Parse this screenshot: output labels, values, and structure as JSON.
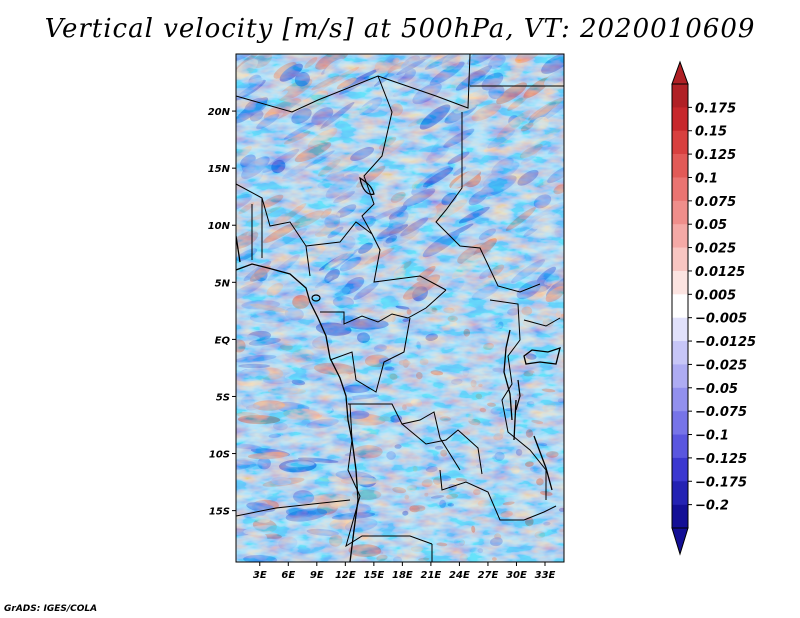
{
  "title": "Vertical velocity [m/s] at 500hPa, VT: 2020010609",
  "credit": "GrADS: IGES/COLA",
  "chart_data": {
    "type": "heatmap",
    "title": "Vertical velocity [m/s] at 500hPa, VT: 2020010609",
    "variable": "Vertical velocity",
    "units": "m/s",
    "level": "500hPa",
    "valid_time": "2020010609",
    "x_ticks": [
      {
        "lon": 3,
        "label": "3E"
      },
      {
        "lon": 6,
        "label": "6E"
      },
      {
        "lon": 9,
        "label": "9E"
      },
      {
        "lon": 12,
        "label": "12E"
      },
      {
        "lon": 15,
        "label": "15E"
      },
      {
        "lon": 18,
        "label": "18E"
      },
      {
        "lon": 21,
        "label": "21E"
      },
      {
        "lon": 24,
        "label": "24E"
      },
      {
        "lon": 27,
        "label": "27E"
      },
      {
        "lon": 30,
        "label": "30E"
      },
      {
        "lon": 33,
        "label": "33E"
      }
    ],
    "y_ticks": [
      {
        "lat": 20,
        "label": "20N"
      },
      {
        "lat": 15,
        "label": "15N"
      },
      {
        "lat": 10,
        "label": "10N"
      },
      {
        "lat": 5,
        "label": "5N"
      },
      {
        "lat": 0,
        "label": "EQ"
      },
      {
        "lat": -5,
        "label": "5S"
      },
      {
        "lat": -10,
        "label": "10S"
      },
      {
        "lat": -15,
        "label": "15S"
      }
    ],
    "lon_range": [
      0.5,
      35
    ],
    "lat_range": [
      -19.5,
      25
    ],
    "colorbar": {
      "orientation": "vertical",
      "position": "right",
      "extend": "both",
      "labels": [
        "0.175",
        "0.15",
        "0.125",
        "0.1",
        "0.075",
        "0.05",
        "0.025",
        "0.0125",
        "0.005",
        "−0.005",
        "−0.0125",
        "−0.025",
        "−0.05",
        "−0.075",
        "−0.1",
        "−0.125",
        "−0.175",
        "−0.2"
      ],
      "colors": [
        "#b02025",
        "#c7282c",
        "#d8403f",
        "#e25a57",
        "#ea7472",
        "#ef8e8b",
        "#f4a9a6",
        "#f8c6c2",
        "#fce4e1",
        "#ffffff",
        "#e1e1fb",
        "#c7c6f7",
        "#aeacf3",
        "#9290ee",
        "#7774e8",
        "#5a56df",
        "#3b37cf",
        "#2422b3",
        "#130f96"
      ]
    }
  }
}
